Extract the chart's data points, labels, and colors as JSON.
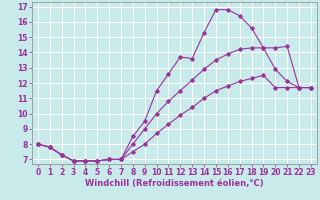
{
  "xlabel": "Windchill (Refroidissement éolien,°C)",
  "xlim": [
    -0.5,
    23.5
  ],
  "ylim": [
    6.7,
    17.3
  ],
  "xticks": [
    0,
    1,
    2,
    3,
    4,
    5,
    6,
    7,
    8,
    9,
    10,
    11,
    12,
    13,
    14,
    15,
    16,
    17,
    18,
    19,
    20,
    21,
    22,
    23
  ],
  "yticks": [
    7,
    8,
    9,
    10,
    11,
    12,
    13,
    14,
    15,
    16,
    17
  ],
  "background_color": "#c8eaea",
  "grid_color": "#ffffff",
  "line_color": "#993399",
  "line1_x": [
    0,
    1,
    2,
    3,
    4,
    5,
    6,
    7,
    8,
    9,
    10,
    11,
    12,
    13,
    14,
    15,
    16,
    17,
    18,
    19,
    20,
    21,
    22,
    23
  ],
  "line1_y": [
    8.0,
    7.8,
    7.3,
    6.9,
    6.9,
    6.9,
    7.0,
    7.0,
    8.5,
    9.5,
    11.5,
    12.6,
    13.7,
    13.6,
    15.3,
    16.8,
    16.8,
    16.4,
    15.6,
    14.3,
    14.3,
    14.4,
    11.7,
    11.7
  ],
  "line2_x": [
    0,
    1,
    2,
    3,
    4,
    5,
    6,
    7,
    8,
    9,
    10,
    11,
    12,
    13,
    14,
    15,
    16,
    17,
    18,
    19,
    20,
    21,
    22,
    23
  ],
  "line2_y": [
    8.0,
    7.8,
    7.3,
    6.9,
    6.9,
    6.9,
    7.0,
    7.0,
    8.0,
    9.0,
    10.0,
    10.8,
    11.5,
    12.2,
    12.9,
    13.5,
    13.9,
    14.2,
    14.3,
    14.3,
    12.9,
    12.1,
    11.7,
    11.7
  ],
  "line3_x": [
    0,
    1,
    2,
    3,
    4,
    5,
    6,
    7,
    8,
    9,
    10,
    11,
    12,
    13,
    14,
    15,
    16,
    17,
    18,
    19,
    20,
    21,
    22,
    23
  ],
  "line3_y": [
    8.0,
    7.8,
    7.3,
    6.9,
    6.9,
    6.9,
    7.0,
    7.0,
    7.5,
    8.0,
    8.7,
    9.3,
    9.9,
    10.4,
    11.0,
    11.5,
    11.8,
    12.1,
    12.3,
    12.5,
    11.7,
    11.7,
    11.7,
    11.7
  ],
  "tick_fontsize": 5.5,
  "label_fontsize": 6.0
}
